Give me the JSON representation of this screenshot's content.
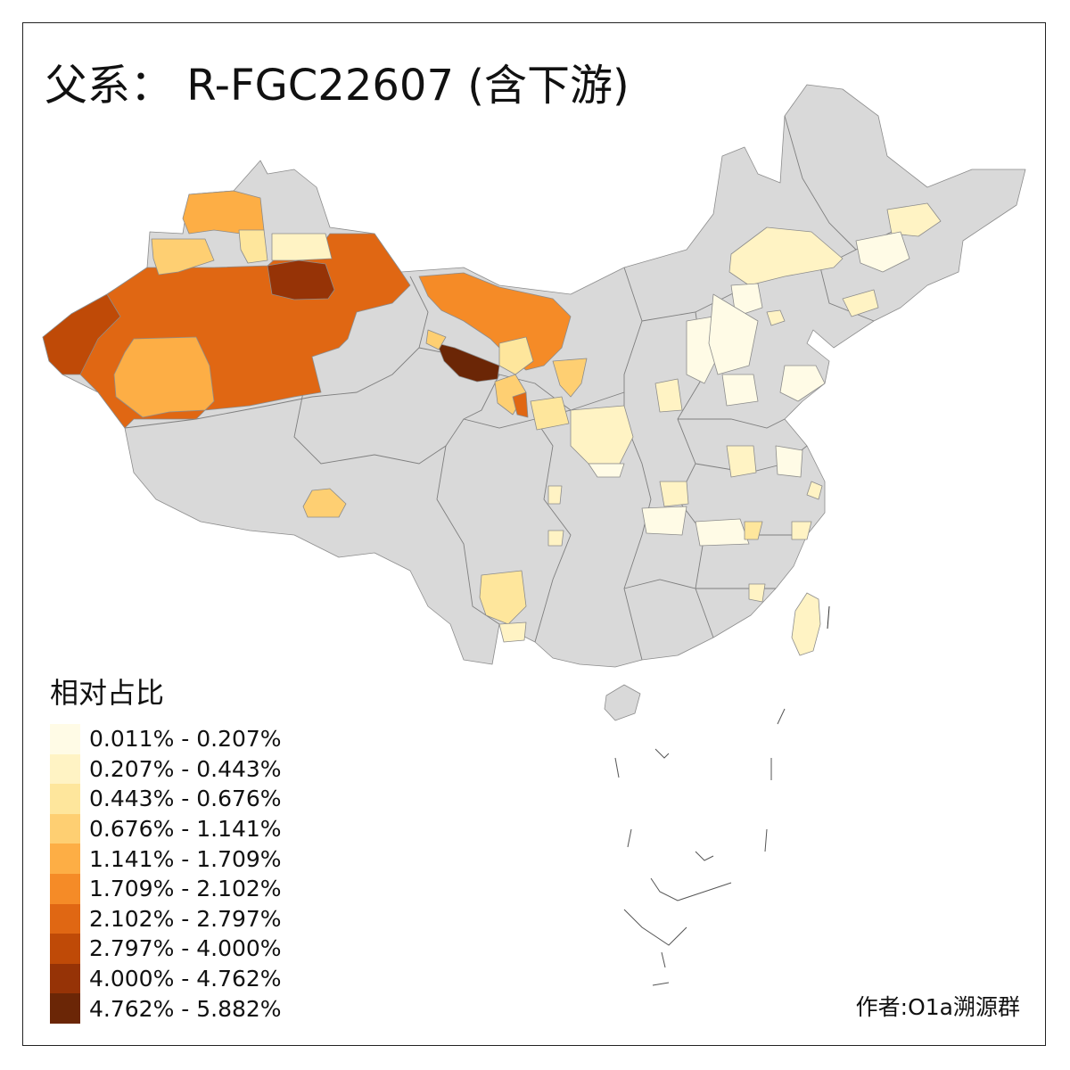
{
  "title": "父系： R-FGC22607 (含下游)",
  "legend": {
    "title": "相对占比",
    "items": [
      {
        "label": "0.011% - 0.207%",
        "color": "#FFFBE6"
      },
      {
        "label": "0.207% - 0.443%",
        "color": "#FFF3C4"
      },
      {
        "label": "0.443% - 0.676%",
        "color": "#FEE69C"
      },
      {
        "label": "0.676% - 1.141%",
        "color": "#FECF72"
      },
      {
        "label": "1.141% - 1.709%",
        "color": "#FDAE45"
      },
      {
        "label": "1.709% - 2.102%",
        "color": "#F58B27"
      },
      {
        "label": "2.102% - 2.797%",
        "color": "#E06713"
      },
      {
        "label": "2.797% - 4.000%",
        "color": "#BF4A07"
      },
      {
        "label": "4.000% - 4.762%",
        "color": "#963306"
      },
      {
        "label": "4.762% - 5.882%",
        "color": "#6B2606"
      }
    ]
  },
  "author": "作者:O1a溯源群",
  "colors": {
    "no_data": "#D9D9D9",
    "border": "#8C8C8C",
    "frame": "#222222"
  }
}
